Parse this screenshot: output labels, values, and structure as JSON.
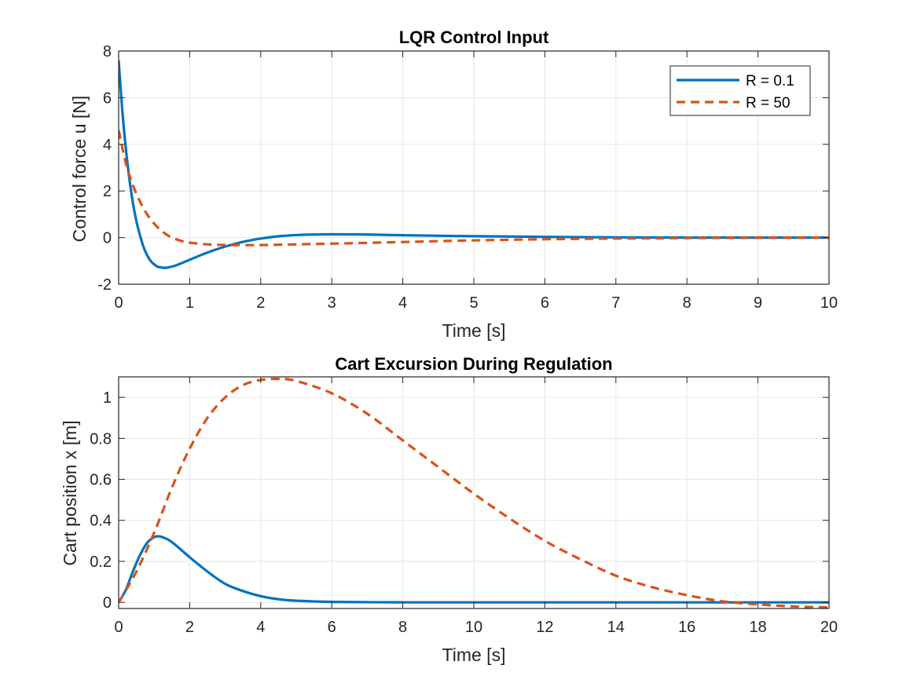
{
  "colors": {
    "series_1": "#0072BD",
    "series_2": "#D95319",
    "grid": "#e6e6e6",
    "axis": "#262626",
    "background": "#ffffff"
  },
  "chart_data": [
    {
      "type": "line",
      "title": "LQR Control Input",
      "xlabel": "Time [s]",
      "ylabel": "Control force u [N]",
      "xlim": [
        0,
        10
      ],
      "ylim": [
        -2,
        8
      ],
      "xticks": [
        0,
        1,
        2,
        3,
        4,
        5,
        6,
        7,
        8,
        9,
        10
      ],
      "yticks": [
        -2,
        0,
        2,
        4,
        6,
        8
      ],
      "grid": true,
      "legend_position": "top-right",
      "series": [
        {
          "name": "R = 0.1",
          "style": "solid",
          "x": [
            0,
            0.05,
            0.1,
            0.15,
            0.2,
            0.25,
            0.3,
            0.35,
            0.4,
            0.45,
            0.5,
            0.55,
            0.6,
            0.65,
            0.7,
            0.8,
            0.9,
            1.0,
            1.2,
            1.4,
            1.6,
            1.8,
            2.0,
            2.3,
            2.6,
            3.0,
            3.5,
            4.0,
            5.0,
            6.0,
            7.0,
            8.0,
            9.0,
            10.0
          ],
          "y": [
            7.6,
            5.5,
            3.85,
            2.55,
            1.5,
            0.7,
            0.1,
            -0.4,
            -0.75,
            -1.0,
            -1.15,
            -1.25,
            -1.28,
            -1.3,
            -1.28,
            -1.2,
            -1.08,
            -0.95,
            -0.7,
            -0.48,
            -0.3,
            -0.15,
            -0.04,
            0.07,
            0.12,
            0.14,
            0.13,
            0.1,
            0.06,
            0.03,
            0.01,
            0.0,
            0.0,
            0.0
          ]
        },
        {
          "name": "R = 50",
          "style": "dashed",
          "x": [
            0,
            0.1,
            0.2,
            0.3,
            0.4,
            0.5,
            0.6,
            0.7,
            0.8,
            0.9,
            1.0,
            1.2,
            1.4,
            1.6,
            2.0,
            2.5,
            3.0,
            4.0,
            5.0,
            6.0,
            7.0,
            8.0,
            9.0,
            10.0
          ],
          "y": [
            4.6,
            3.2,
            2.25,
            1.55,
            1.0,
            0.6,
            0.3,
            0.08,
            -0.06,
            -0.16,
            -0.22,
            -0.28,
            -0.31,
            -0.32,
            -0.32,
            -0.29,
            -0.26,
            -0.19,
            -0.12,
            -0.07,
            -0.04,
            -0.02,
            -0.01,
            0.0
          ]
        }
      ]
    },
    {
      "type": "line",
      "title": "Cart Excursion During Regulation",
      "xlabel": "Time [s]",
      "ylabel": "Cart position x [m]",
      "xlim": [
        0,
        20
      ],
      "ylim": [
        -0.03,
        1.1
      ],
      "xticks": [
        0,
        2,
        4,
        6,
        8,
        10,
        12,
        14,
        16,
        18,
        20
      ],
      "yticks": [
        0,
        0.2,
        0.4,
        0.6,
        0.8,
        1
      ],
      "grid": true,
      "series": [
        {
          "name": "R = 0.1",
          "style": "solid",
          "x": [
            0,
            0.2,
            0.4,
            0.6,
            0.8,
            1.0,
            1.1,
            1.2,
            1.4,
            1.6,
            1.8,
            2.0,
            2.5,
            3.0,
            3.5,
            4.0,
            4.5,
            5.0,
            6.0,
            8.0,
            10.0,
            14.0,
            20.0
          ],
          "y": [
            0.0,
            0.06,
            0.15,
            0.23,
            0.29,
            0.318,
            0.322,
            0.32,
            0.305,
            0.28,
            0.25,
            0.22,
            0.15,
            0.09,
            0.055,
            0.03,
            0.015,
            0.008,
            0.002,
            0.0,
            0.0,
            0.0,
            0.0
          ]
        },
        {
          "name": "R = 50",
          "style": "dashed",
          "x": [
            0,
            0.5,
            1.0,
            1.5,
            2.0,
            2.5,
            3.0,
            3.5,
            4.0,
            4.5,
            5.0,
            6.0,
            7.0,
            8.0,
            9.0,
            10.0,
            11.0,
            12.0,
            13.0,
            14.0,
            15.0,
            16.0,
            17.0,
            18.0,
            19.0,
            20.0
          ],
          "y": [
            0.0,
            0.15,
            0.34,
            0.56,
            0.75,
            0.9,
            1.0,
            1.06,
            1.085,
            1.09,
            1.08,
            1.02,
            0.92,
            0.79,
            0.66,
            0.53,
            0.41,
            0.3,
            0.21,
            0.13,
            0.075,
            0.035,
            0.005,
            -0.01,
            -0.02,
            -0.025
          ]
        }
      ]
    }
  ]
}
